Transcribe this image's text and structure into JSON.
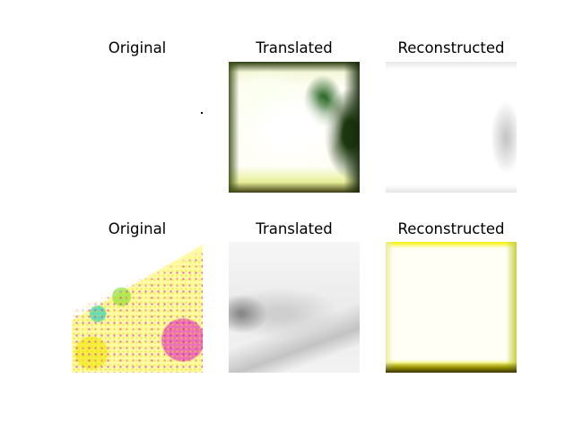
{
  "row1": {
    "title_original": "Original",
    "title_translated": "Translated",
    "title_reconstructed": "Reconstructed"
  },
  "row2": {
    "title_original": "Original",
    "title_translated": "Translated",
    "title_reconstructed": "Reconstructed"
  }
}
